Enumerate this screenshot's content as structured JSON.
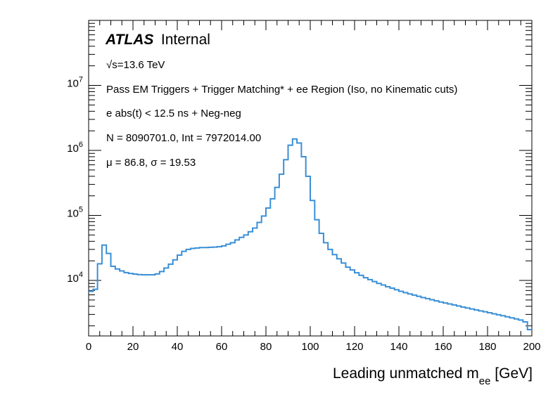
{
  "chart_data": {
    "type": "line",
    "style": "step-histogram",
    "title": "",
    "xlabel": "Leading unmatched m",
    "xlabel_sub": "ee",
    "xlabel_unit": " [GeV]",
    "ylabel": "",
    "xlim": [
      0,
      200
    ],
    "ylim": [
      1400,
      100000000
    ],
    "yscale": "log",
    "x_ticks": [
      0,
      20,
      40,
      60,
      80,
      100,
      120,
      140,
      160,
      180,
      200
    ],
    "y_ticks": [
      {
        "value": 10000,
        "base": "10",
        "exp": "4"
      },
      {
        "value": 100000,
        "base": "10",
        "exp": "5"
      },
      {
        "value": 1000000,
        "base": "10",
        "exp": "6"
      },
      {
        "value": 10000000,
        "base": "10",
        "exp": "7"
      }
    ],
    "line_color": "#3a8fd6",
    "annotations": {
      "atlas": "ATLAS",
      "internal": "Internal",
      "energy": "√s=13.6 TeV",
      "selection": "Pass EM Triggers + Trigger Matching* + ee Region (Iso, no Kinematic cuts)",
      "timing": "e abs(t) < 12.5 ns + Neg-neg",
      "counts": "N = 8090701.0, Int  = 7972014.00",
      "stats": "μ = 86.8, σ = 19.53"
    },
    "series": [
      {
        "name": "Leading unmatched m_ee",
        "bin_width": 2,
        "bin_edges_start": 0,
        "values": [
          6800,
          7300,
          18000,
          35000,
          26000,
          16500,
          15000,
          14000,
          13200,
          12800,
          12500,
          12300,
          12200,
          12200,
          12200,
          12600,
          13700,
          15500,
          17800,
          20700,
          24500,
          28000,
          30000,
          31000,
          31500,
          32000,
          32000,
          32300,
          32500,
          33000,
          34000,
          36000,
          38000,
          42000,
          46000,
          50000,
          56000,
          64000,
          78000,
          98000,
          130000,
          180000,
          270000,
          430000,
          720000,
          1200000,
          1500000,
          1300000,
          800000,
          400000,
          170000,
          86000,
          53000,
          38000,
          30000,
          25000,
          21500,
          18500,
          16000,
          14500,
          13100,
          12000,
          11000,
          10300,
          9600,
          9000,
          8500,
          8000,
          7600,
          7200,
          6800,
          6500,
          6200,
          5950,
          5700,
          5450,
          5250,
          5050,
          4850,
          4650,
          4500,
          4350,
          4200,
          4050,
          3900,
          3770,
          3640,
          3520,
          3400,
          3290,
          3180,
          3070,
          2960,
          2860,
          2760,
          2660,
          2560,
          2460,
          2300,
          1750
        ]
      }
    ]
  }
}
